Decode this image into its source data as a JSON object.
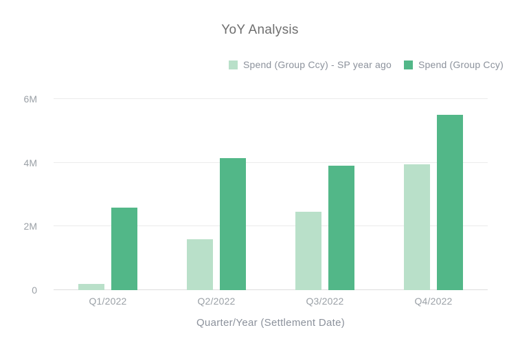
{
  "title": "YoY Analysis",
  "legend": {
    "items": [
      {
        "label": "Spend (Group Ccy) - SP year ago",
        "color": "#b9e0c9"
      },
      {
        "label": "Spend (Group Ccy)",
        "color": "#52b788"
      }
    ]
  },
  "chart_data": {
    "type": "bar",
    "title": "YoY Analysis",
    "categories": [
      "Q1/2022",
      "Q2/2022",
      "Q3/2022",
      "Q4/2022"
    ],
    "series": [
      {
        "name": "Spend (Group Ccy) - SP year ago",
        "color": "#b9e0c9",
        "values": [
          200000,
          1600000,
          2450000,
          3950000
        ]
      },
      {
        "name": "Spend (Group Ccy)",
        "color": "#52b788",
        "values": [
          2600000,
          4150000,
          3900000,
          5500000
        ]
      }
    ],
    "xlabel": "Quarter/Year (Settlement Date)",
    "ylabel": "",
    "ylim": [
      0,
      6000000
    ],
    "yticks": [
      {
        "value": 0,
        "label": "0"
      },
      {
        "value": 2000000,
        "label": "2M"
      },
      {
        "value": 4000000,
        "label": "4M"
      },
      {
        "value": 6000000,
        "label": "6M"
      }
    ],
    "grid": true,
    "legend_position": "top-right",
    "colors": {
      "grid": "#ebebeb",
      "baseline": "#dcdcdc",
      "title_text": "#6e6e6e",
      "tick_text": "#9aa0a6",
      "legend_text": "#8b919b",
      "background": "#ffffff"
    }
  }
}
